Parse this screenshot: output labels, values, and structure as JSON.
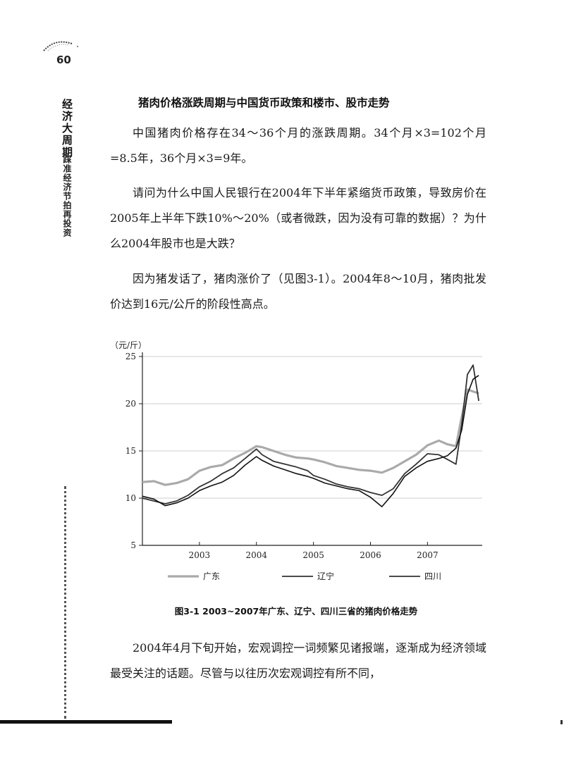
{
  "page": {
    "number": "60",
    "book_title": "经济大周期",
    "book_subtitle": "踩准经济节拍再投资"
  },
  "section": {
    "heading": "猪肉价格涨跌周期与中国货币政策和楼市、股市走势",
    "paragraphs": [
      "中国猪肉价格存在34～36个月的涨跌周期。34个月×3=102个月=8.5年，36个月×3=9年。",
      "请问为什么中国人民银行在2004年下半年紧缩货币政策，导致房价在2005年上半年下跌10%～20%（或者微跌，因为没有可靠的数据）？为什么2004年股市也是大跌？",
      "因为猪发话了，猪肉涨价了（见图3-1）。2004年8～10月，猪肉批发价达到16元/公斤的阶段性高点。",
      "2004年4月下旬开始，宏观调控一词频繁见诸报端，逐渐成为经济领域最受关注的话题。尽管与以往历次宏观调控有所不同，"
    ]
  },
  "figure": {
    "caption": "图3-1  2003~2007年广东、辽宁、四川三省的猪肉价格走势"
  },
  "chart_data": {
    "type": "line",
    "title": "",
    "ylabel": "（元/斤）",
    "xlabel": "",
    "ylim": [
      5,
      25
    ],
    "yticks": [
      5,
      10,
      15,
      20,
      25
    ],
    "xlim": [
      2002.0,
      2007.96
    ],
    "xticks": [
      "2003",
      "2004",
      "2005",
      "2006",
      "2007"
    ],
    "grid": true,
    "legend": "bottom",
    "series": [
      {
        "name": "广东",
        "color": "#aaaaaa",
        "x": [
          2002.0,
          2002.2,
          2002.4,
          2002.6,
          2002.8,
          2003.0,
          2003.2,
          2003.4,
          2003.6,
          2003.8,
          2004.0,
          2004.1,
          2004.3,
          2004.5,
          2004.7,
          2004.9,
          2005.0,
          2005.2,
          2005.4,
          2005.6,
          2005.8,
          2006.0,
          2006.2,
          2006.4,
          2006.6,
          2006.8,
          2007.0,
          2007.2,
          2007.35,
          2007.5,
          2007.6,
          2007.7,
          2007.8,
          2007.9
        ],
        "y": [
          11.7,
          11.8,
          11.4,
          11.6,
          12.0,
          12.9,
          13.3,
          13.5,
          14.2,
          14.8,
          15.5,
          15.4,
          15.0,
          14.6,
          14.3,
          14.2,
          14.1,
          13.8,
          13.4,
          13.2,
          13.0,
          12.9,
          12.7,
          13.2,
          13.9,
          14.6,
          15.6,
          16.1,
          15.7,
          15.5,
          18.6,
          21.5,
          21.3,
          21.1
        ]
      },
      {
        "name": "辽宁",
        "color": "#333333",
        "x": [
          2002.0,
          2002.2,
          2002.4,
          2002.6,
          2002.8,
          2003.0,
          2003.2,
          2003.4,
          2003.6,
          2003.8,
          2004.0,
          2004.1,
          2004.3,
          2004.5,
          2004.7,
          2004.9,
          2005.0,
          2005.2,
          2005.4,
          2005.6,
          2005.8,
          2006.0,
          2006.2,
          2006.4,
          2006.6,
          2006.8,
          2007.0,
          2007.2,
          2007.35,
          2007.5,
          2007.6,
          2007.7,
          2007.8,
          2007.9
        ],
        "y": [
          10.0,
          9.7,
          9.4,
          9.7,
          10.3,
          11.2,
          11.8,
          12.6,
          13.2,
          14.2,
          15.2,
          14.6,
          13.9,
          13.6,
          13.3,
          12.9,
          12.4,
          12.0,
          11.5,
          11.2,
          11.0,
          10.6,
          10.3,
          11.0,
          12.6,
          13.6,
          14.7,
          14.6,
          14.1,
          13.6,
          17.8,
          23.1,
          24.1,
          20.3
        ]
      },
      {
        "name": "四川",
        "color": "#111111",
        "x": [
          2002.0,
          2002.2,
          2002.4,
          2002.6,
          2002.8,
          2003.0,
          2003.2,
          2003.4,
          2003.6,
          2003.8,
          2004.0,
          2004.1,
          2004.3,
          2004.5,
          2004.7,
          2004.9,
          2005.0,
          2005.2,
          2005.4,
          2005.6,
          2005.8,
          2006.0,
          2006.2,
          2006.4,
          2006.6,
          2006.8,
          2007.0,
          2007.2,
          2007.35,
          2007.5,
          2007.6,
          2007.7,
          2007.8,
          2007.9
        ],
        "y": [
          10.2,
          9.9,
          9.2,
          9.5,
          10.0,
          10.8,
          11.3,
          11.7,
          12.4,
          13.5,
          14.4,
          14.0,
          13.4,
          13.0,
          12.6,
          12.3,
          12.1,
          11.6,
          11.3,
          11.0,
          10.8,
          10.1,
          9.1,
          10.5,
          12.3,
          13.2,
          13.9,
          14.2,
          14.5,
          15.3,
          17.2,
          21.0,
          22.6,
          23.0
        ]
      }
    ]
  }
}
